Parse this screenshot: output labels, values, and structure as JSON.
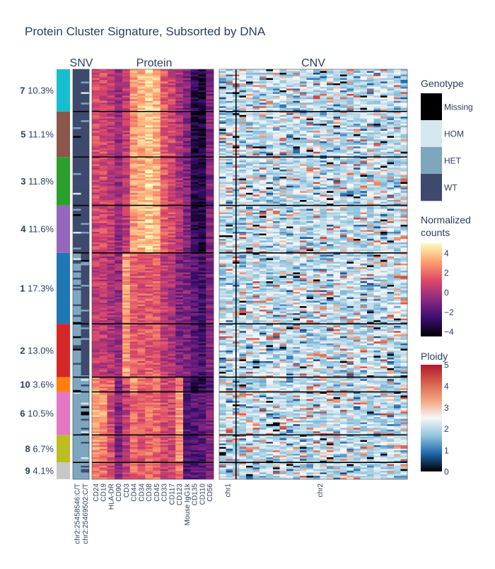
{
  "chart_data": {
    "type": "heatmap",
    "title": "Protein Cluster Signature, Subsorted by DNA",
    "panels": {
      "snv": "SNV",
      "protein": "Protein",
      "cnv": "CNV"
    },
    "clusters": [
      {
        "label": "7",
        "percent": "10.3%",
        "fraction": 0.103,
        "color": "#17becf"
      },
      {
        "label": "5",
        "percent": "11.1%",
        "fraction": 0.111,
        "color": "#8c564b"
      },
      {
        "label": "3",
        "percent": "11.8%",
        "fraction": 0.118,
        "color": "#2ca02c"
      },
      {
        "label": "4",
        "percent": "11.6%",
        "fraction": 0.116,
        "color": "#9467bd"
      },
      {
        "label": "1",
        "percent": "17.3%",
        "fraction": 0.173,
        "color": "#1f77b4"
      },
      {
        "label": "2",
        "percent": "13.0%",
        "fraction": 0.13,
        "color": "#d62728"
      },
      {
        "label": "10",
        "percent": "3.6%",
        "fraction": 0.036,
        "color": "#ff7f0e"
      },
      {
        "label": "6",
        "percent": "10.5%",
        "fraction": 0.105,
        "color": "#e377c2"
      },
      {
        "label": "8",
        "percent": "6.7%",
        "fraction": 0.067,
        "color": "#bcbd22"
      },
      {
        "label": "9",
        "percent": "4.1%",
        "fraction": 0.041,
        "color": "#c7c7c7"
      }
    ],
    "snv_columns": [
      "chr2:25458546:C/T",
      "chr2:25469502:C/T"
    ],
    "protein_columns": [
      "CD24",
      "CD19",
      "HLA-DR",
      "CD90",
      "CD3",
      "CD44",
      "CD34",
      "CD38",
      "CD45",
      "CD33",
      "CD117",
      "CD123",
      "Mouse IgG1k",
      "CD135",
      "CD110",
      "CD56"
    ],
    "cnv_columns": [
      "chr1",
      "chr2"
    ],
    "genotype_legend": {
      "title": "Genotype",
      "categories": [
        {
          "label": "Missing",
          "color": "#000000"
        },
        {
          "label": "HOM",
          "color": "#d6e8ef"
        },
        {
          "label": "HET",
          "color": "#7ea6bf"
        },
        {
          "label": "WT",
          "color": "#3d4a6e"
        }
      ]
    },
    "protein_colorbar": {
      "title": "Normalized counts",
      "title_lines": [
        "Normalized",
        "counts"
      ],
      "range": [
        -4.5,
        5
      ],
      "ticks": [
        4,
        2,
        0,
        -2,
        -4
      ],
      "tick_labels": [
        "4",
        "2",
        "0",
        "−2",
        "−4"
      ],
      "colorscale": [
        "#000004",
        "#3b0f70",
        "#8c2981",
        "#de4968",
        "#fe9f6d",
        "#fcfdbf"
      ]
    },
    "ploidy_colorbar": {
      "title": "Ploidy",
      "range": [
        0,
        5
      ],
      "ticks": [
        5,
        4,
        3,
        2,
        1,
        0
      ],
      "tick_labels": [
        "5",
        "4",
        "3",
        "2",
        "1",
        "0"
      ],
      "colorscale": [
        "#000000",
        "#2166ac",
        "#92c5de",
        "#f7f7f7",
        "#f4a582",
        "#d6604d",
        "#b2182b"
      ]
    }
  }
}
